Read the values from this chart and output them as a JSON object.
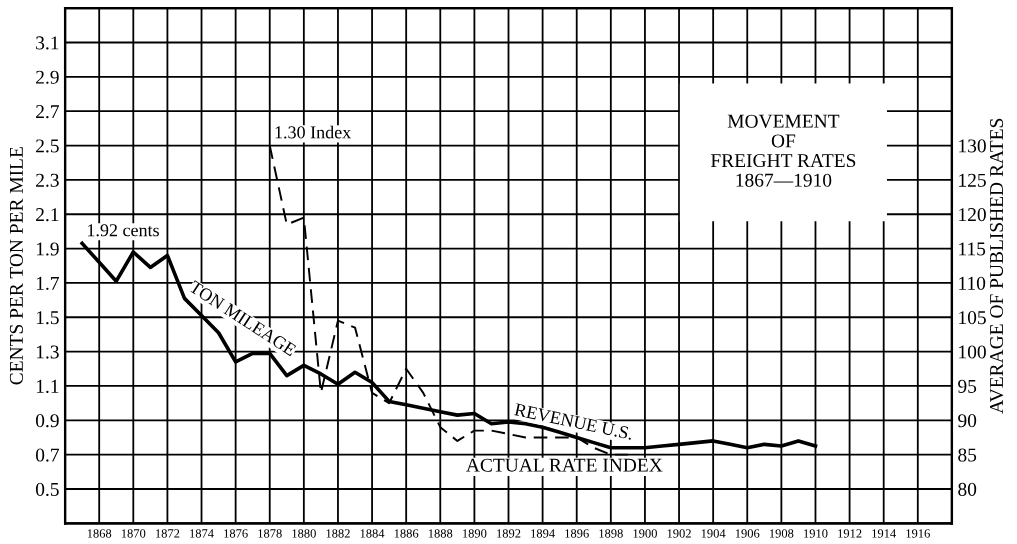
{
  "chart_data": {
    "type": "line",
    "ylabel": "CENTS PER TON PER MILE",
    "y2label": "AVERAGE OF PUBLISHED RATES",
    "annotations": [
      "MOVEMENT\nOF\nFREIGHT RATES\n1867—1910",
      {
        "text": "1.92 cents",
        "x": 1867,
        "y": 1.93
      },
      {
        "text": "1.30 Index",
        "x": 1878,
        "y": 2.5
      },
      {
        "text": "REVENUE U.S.",
        "x": 1892,
        "y": 0.89
      }
    ],
    "series": [
      {
        "name": "TON MILEAGE",
        "color": "#000000",
        "line_style": "solid",
        "x": [
          1867,
          1868,
          1869,
          1870,
          1871,
          1872,
          1873,
          1874,
          1875,
          1876,
          1877,
          1878,
          1879,
          1880,
          1881,
          1882,
          1883,
          1884,
          1885,
          1886,
          1887,
          1888,
          1889,
          1890,
          1891,
          1892,
          1893,
          1894,
          1895,
          1896,
          1897,
          1898,
          1899,
          1900,
          1901,
          1902,
          1903,
          1904,
          1905,
          1906,
          1907,
          1908,
          1909,
          1910
        ],
        "values": [
          1.93,
          1.82,
          1.71,
          1.88,
          1.79,
          1.86,
          1.61,
          1.51,
          1.41,
          1.24,
          1.29,
          1.29,
          1.16,
          1.22,
          1.17,
          1.11,
          1.18,
          1.12,
          1.01,
          0.99,
          0.97,
          0.95,
          0.93,
          0.94,
          0.88,
          0.89,
          0.88,
          0.86,
          0.83,
          0.8,
          0.77,
          0.74,
          0.74,
          0.74,
          0.75,
          0.76,
          0.77,
          0.78,
          0.76,
          0.74,
          0.76,
          0.75,
          0.78,
          0.75
        ]
      },
      {
        "name": "ACTUAL RATE INDEX",
        "color": "#000000",
        "line_style": "dashed",
        "axis": "y2",
        "x": [
          1878,
          1879,
          1880,
          1881,
          1882,
          1883,
          1884,
          1885,
          1886,
          1887,
          1888,
          1889,
          1890,
          1891,
          1892,
          1893,
          1894,
          1895,
          1896,
          1897,
          1898,
          1899
        ],
        "values": [
          130,
          118.5,
          119.5,
          94,
          104.5,
          103.5,
          94,
          92.5,
          97.5,
          94,
          89,
          87,
          88.5,
          88.5,
          88,
          87.5,
          87.5,
          87.5,
          87.5,
          86,
          85,
          85
        ]
      }
    ],
    "xlim": [
      1866,
      1918
    ],
    "xticks": [
      1868,
      1870,
      1872,
      1874,
      1876,
      1878,
      1880,
      1882,
      1884,
      1886,
      1888,
      1890,
      1892,
      1894,
      1896,
      1898,
      1900,
      1902,
      1904,
      1906,
      1908,
      1910,
      1912,
      1914,
      1916
    ],
    "ylim": [
      0.3,
      3.3
    ],
    "yticks": [
      0.5,
      0.7,
      0.9,
      1.1,
      1.3,
      1.5,
      1.7,
      1.9,
      2.1,
      2.3,
      2.5,
      2.7,
      2.9,
      3.1
    ],
    "y2lim": [
      75,
      150
    ],
    "y2ticks": [
      80,
      85,
      90,
      95,
      100,
      105,
      110,
      115,
      120,
      125,
      130
    ],
    "grid": true,
    "legend": false
  }
}
